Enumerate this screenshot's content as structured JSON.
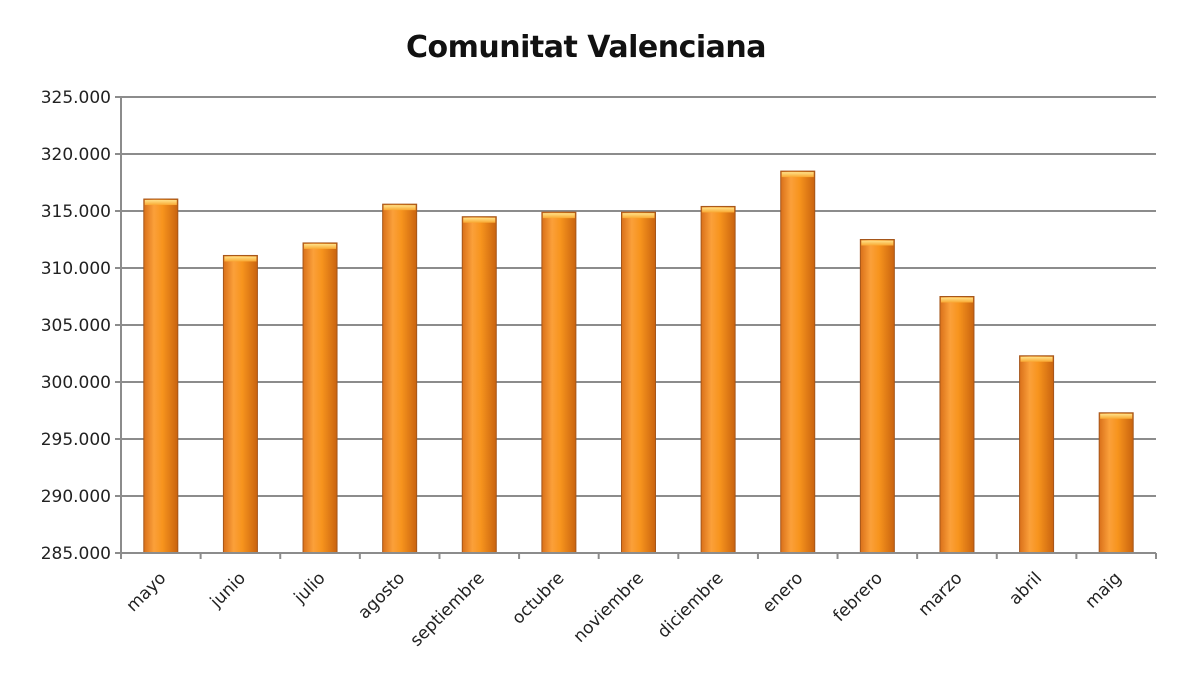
{
  "chart_data": {
    "type": "bar",
    "title": "Comunitat Valenciana",
    "xlabel": "",
    "ylabel": "",
    "categories": [
      "mayo",
      "junio",
      "julio",
      "agosto",
      "septiembre",
      "octubre",
      "noviembre",
      "diciembre",
      "enero",
      "febrero",
      "marzo",
      "abril",
      "maig"
    ],
    "values": [
      316050,
      311100,
      312200,
      315600,
      314500,
      314900,
      314900,
      315400,
      318500,
      312500,
      307500,
      302300,
      297300
    ],
    "ylim": [
      285000,
      325000
    ],
    "yticks": [
      285000,
      290000,
      295000,
      300000,
      305000,
      310000,
      315000,
      320000,
      325000
    ],
    "ytick_labels": [
      "285.000",
      "290.000",
      "295.000",
      "300.000",
      "305.000",
      "310.000",
      "315.000",
      "320.000",
      "325.000"
    ],
    "grid": true,
    "legend": null,
    "bar_color": "#F7941D"
  }
}
